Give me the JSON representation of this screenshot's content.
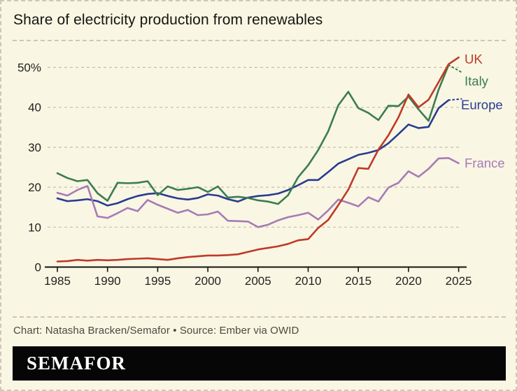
{
  "chart_data": {
    "type": "line",
    "title": "Share of electricity production from renewables",
    "xlabel": "",
    "ylabel": "",
    "xlim": [
      1985,
      2025
    ],
    "ylim": [
      0,
      55
    ],
    "grid": "horizontal-dashed",
    "background_color": "#f9f6e4",
    "gridline_color": "#c3bfab",
    "axis_color": "#15150f",
    "tick_label_color": "#23231d",
    "xticks": [
      1985,
      1990,
      1995,
      2000,
      2005,
      2010,
      2015,
      2020,
      2025
    ],
    "yticks": [
      {
        "value": 0,
        "label": "0"
      },
      {
        "value": 10,
        "label": "10"
      },
      {
        "value": 20,
        "label": "20"
      },
      {
        "value": 30,
        "label": "30"
      },
      {
        "value": 40,
        "label": "40"
      },
      {
        "value": 50,
        "label": "50%"
      }
    ],
    "years": [
      1985,
      1986,
      1987,
      1988,
      1989,
      1990,
      1991,
      1992,
      1993,
      1994,
      1995,
      1996,
      1997,
      1998,
      1999,
      2000,
      2001,
      2002,
      2003,
      2004,
      2005,
      2006,
      2007,
      2008,
      2009,
      2010,
      2011,
      2012,
      2013,
      2014,
      2015,
      2016,
      2017,
      2018,
      2019,
      2020,
      2021,
      2022,
      2023,
      2024,
      2025
    ],
    "legend_position": "right-end-labels",
    "series": [
      {
        "name": "Europe",
        "color": "#283c8f",
        "last_segment_dotted": true,
        "values": [
          17.2,
          16.5,
          16.7,
          17.0,
          16.5,
          15.4,
          16.0,
          17.0,
          17.8,
          18.3,
          18.5,
          17.8,
          17.2,
          16.9,
          17.3,
          18.2,
          17.9,
          17.0,
          16.4,
          17.4,
          17.8,
          18.0,
          18.4,
          19.3,
          20.5,
          21.8,
          21.8,
          23.8,
          25.9,
          27.0,
          28.1,
          28.6,
          29.3,
          31.0,
          33.3,
          35.7,
          34.8,
          35.1,
          39.8,
          41.8,
          42.1
        ]
      },
      {
        "name": "France",
        "color": "#a77bb4",
        "last_segment_dotted": false,
        "values": [
          18.6,
          17.9,
          19.3,
          20.3,
          12.7,
          12.3,
          13.5,
          14.8,
          14.0,
          16.8,
          15.6,
          14.6,
          13.6,
          14.3,
          13.0,
          13.2,
          13.9,
          11.6,
          11.5,
          11.4,
          10.0,
          10.6,
          11.7,
          12.5,
          13.0,
          13.6,
          11.9,
          14.2,
          16.9,
          16.1,
          15.2,
          17.5,
          16.4,
          19.9,
          21.1,
          24.0,
          22.6,
          24.6,
          27.2,
          27.3,
          26.0
        ]
      },
      {
        "name": "Italy",
        "color": "#3b7d4e",
        "last_segment_dotted": true,
        "values": [
          23.5,
          22.3,
          21.5,
          21.8,
          18.5,
          16.6,
          21.1,
          21.0,
          21.1,
          21.5,
          18.0,
          20.2,
          19.3,
          19.6,
          20.0,
          18.8,
          20.2,
          17.4,
          17.6,
          17.3,
          16.7,
          16.4,
          15.8,
          18.0,
          22.5,
          25.5,
          29.3,
          34.0,
          40.5,
          43.9,
          39.8,
          38.6,
          36.8,
          40.4,
          40.3,
          42.7,
          39.5,
          36.6,
          44.4,
          50.6,
          48.8
        ]
      },
      {
        "name": "UK",
        "color": "#bf3a27",
        "last_segment_dotted": false,
        "values": [
          1.4,
          1.5,
          1.8,
          1.6,
          1.8,
          1.7,
          1.8,
          2.0,
          2.1,
          2.2,
          2.0,
          1.8,
          2.2,
          2.5,
          2.7,
          2.9,
          2.9,
          3.0,
          3.2,
          3.8,
          4.4,
          4.8,
          5.2,
          5.8,
          6.7,
          7.0,
          9.8,
          11.8,
          15.5,
          19.4,
          24.8,
          24.6,
          29.4,
          33.0,
          37.5,
          43.2,
          40.0,
          41.9,
          46.3,
          50.8,
          52.5
        ]
      }
    ]
  },
  "footer": {
    "credit": "Chart: Natasha Bracken/Semafor • Source: Ember via OWID"
  },
  "logo": {
    "text": "SEMAFOR"
  }
}
